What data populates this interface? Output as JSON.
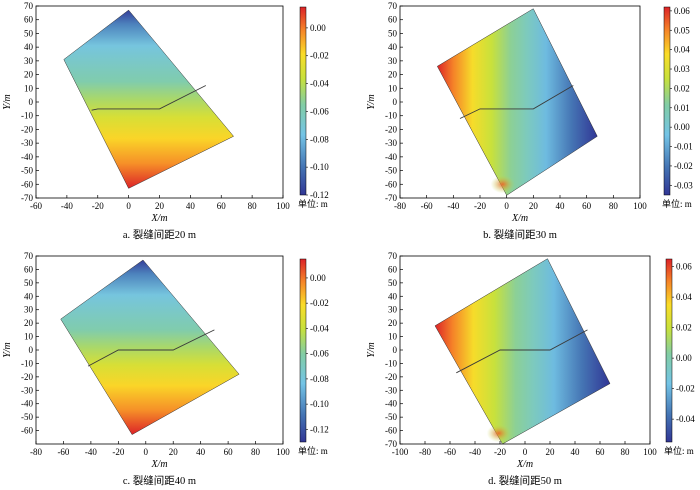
{
  "chart_data": [
    {
      "type": "heatmap",
      "caption": "a. 裂缝间距20 m",
      "xlabel": "X/m",
      "ylabel": "Y/m",
      "xlim": [
        -60,
        100
      ],
      "ylim": [
        -70,
        70
      ],
      "xticks": [
        -60,
        -40,
        -20,
        0,
        20,
        40,
        60,
        80,
        100
      ],
      "yticks": [
        -70,
        -60,
        -50,
        -40,
        -30,
        -20,
        -10,
        0,
        10,
        20,
        30,
        40,
        50,
        60,
        70
      ],
      "colorbar": {
        "min": -0.12,
        "max": 0.015,
        "ticks": [
          -0.12,
          -0.1,
          -0.08,
          -0.06,
          -0.04,
          -0.02,
          0.0
        ],
        "tick_labels": [
          "-0.12",
          "-0.10",
          "-0.08",
          "-0.06",
          "-0.04",
          "-0.02",
          "0.00"
        ],
        "unit_label": "单位: m"
      },
      "domain_corners": [
        [
          -42,
          31
        ],
        [
          0,
          67
        ],
        [
          68,
          -25
        ],
        [
          0,
          -63
        ]
      ],
      "fracture_polyline": [
        [
          -24,
          -6
        ],
        [
          -20,
          -5
        ],
        [
          20,
          -5
        ],
        [
          50,
          12
        ]
      ],
      "field": "north_south_gradient"
    },
    {
      "type": "heatmap",
      "caption": "b. 裂缝间距30 m",
      "xlabel": "X/m",
      "ylabel": "Y/m",
      "xlim": [
        -80,
        100
      ],
      "ylim": [
        -70,
        70
      ],
      "xticks": [
        -80,
        -60,
        -40,
        -20,
        0,
        20,
        40,
        60,
        80,
        100
      ],
      "yticks": [
        -70,
        -60,
        -50,
        -40,
        -30,
        -20,
        -10,
        0,
        10,
        20,
        30,
        40,
        50,
        60,
        70
      ],
      "colorbar": {
        "min": -0.035,
        "max": 0.062,
        "ticks": [
          -0.03,
          -0.02,
          -0.01,
          0.0,
          0.01,
          0.02,
          0.03,
          0.04,
          0.05,
          0.06
        ],
        "tick_labels": [
          "-0.03",
          "-0.02",
          "-0.01",
          "0.00",
          "0.01",
          "0.02",
          "0.03",
          "0.04",
          "0.05",
          "0.06"
        ],
        "unit_label": "单位: m"
      },
      "domain_corners": [
        [
          -52,
          26
        ],
        [
          20,
          68
        ],
        [
          68,
          -25
        ],
        [
          0,
          -68
        ]
      ],
      "fracture_polyline": [
        [
          -35,
          -12
        ],
        [
          -20,
          -5
        ],
        [
          20,
          -5
        ],
        [
          50,
          12
        ]
      ],
      "field": "west_east_gradient"
    },
    {
      "type": "heatmap",
      "caption": "c. 裂缝间距40 m",
      "xlabel": "X/m",
      "ylabel": "Y/m",
      "xlim": [
        -80,
        100
      ],
      "ylim": [
        -70,
        70
      ],
      "xticks": [
        -80,
        -60,
        -40,
        -20,
        0,
        20,
        40,
        60,
        80,
        100
      ],
      "yticks": [
        -60,
        -50,
        -40,
        -30,
        -20,
        -10,
        0,
        10,
        20,
        30,
        40,
        50,
        60,
        70
      ],
      "colorbar": {
        "min": -0.13,
        "max": 0.015,
        "ticks": [
          -0.12,
          -0.1,
          -0.08,
          -0.06,
          -0.04,
          -0.02,
          0.0
        ],
        "tick_labels": [
          "-0.12",
          "-0.10",
          "-0.08",
          "-0.06",
          "-0.04",
          "-0.02",
          "0.00"
        ],
        "unit_label": "单位: m"
      },
      "domain_corners": [
        [
          -62,
          23
        ],
        [
          -2,
          67
        ],
        [
          68,
          -18
        ],
        [
          -10,
          -63
        ]
      ],
      "fracture_polyline": [
        [
          -42,
          -12
        ],
        [
          -20,
          0
        ],
        [
          20,
          0
        ],
        [
          50,
          15
        ]
      ],
      "field": "north_south_gradient"
    },
    {
      "type": "heatmap",
      "caption": "d. 裂缝间距50 m",
      "xlabel": "X/m",
      "ylabel": "Y/m",
      "xlim": [
        -100,
        100
      ],
      "ylim": [
        -70,
        70
      ],
      "xticks": [
        -100,
        -80,
        -60,
        -40,
        -20,
        0,
        20,
        40,
        60,
        80,
        100
      ],
      "yticks": [
        -70,
        -60,
        -50,
        -40,
        -30,
        -20,
        -10,
        0,
        10,
        20,
        30,
        40,
        50,
        60,
        70
      ],
      "colorbar": {
        "min": -0.055,
        "max": 0.065,
        "ticks": [
          -0.04,
          -0.02,
          0.0,
          0.02,
          0.04,
          0.06
        ],
        "tick_labels": [
          "-0.04",
          "-0.02",
          "0.00",
          "0.02",
          "0.04",
          "0.06"
        ],
        "unit_label": "单位: m"
      },
      "domain_corners": [
        [
          -72,
          18
        ],
        [
          18,
          68
        ],
        [
          68,
          -25
        ],
        [
          -18,
          -70
        ]
      ],
      "fracture_polyline": [
        [
          -55,
          -17
        ],
        [
          -20,
          0
        ],
        [
          20,
          0
        ],
        [
          50,
          15
        ]
      ],
      "field": "west_east_gradient"
    }
  ]
}
